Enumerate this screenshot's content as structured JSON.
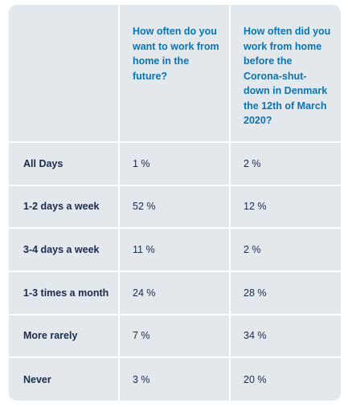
{
  "table": {
    "headers": [
      "",
      "How often do you want to work from home in the future?",
      "How often did you work from home before the Corona-shut-down in Denmark the 12th of March 2020?"
    ],
    "rows": [
      {
        "label": "All Days",
        "future": "1 %",
        "before": "2 %"
      },
      {
        "label": "1-2 days a week",
        "future": "52 %",
        "before": "12 %"
      },
      {
        "label": "3-4 days a week",
        "future": "11 %",
        "before": "2 %"
      },
      {
        "label": "1-3 times a month",
        "future": "24 %",
        "before": "28 %"
      },
      {
        "label": "More rarely",
        "future": "7 %",
        "before": "34 %"
      },
      {
        "label": "Never",
        "future": "3 %",
        "before": "20 %"
      }
    ]
  },
  "colors": {
    "card_background": "#e3e8ec",
    "header_text": "#0a74b3",
    "body_text": "#1a2b4c",
    "divider": "#ffffff"
  }
}
